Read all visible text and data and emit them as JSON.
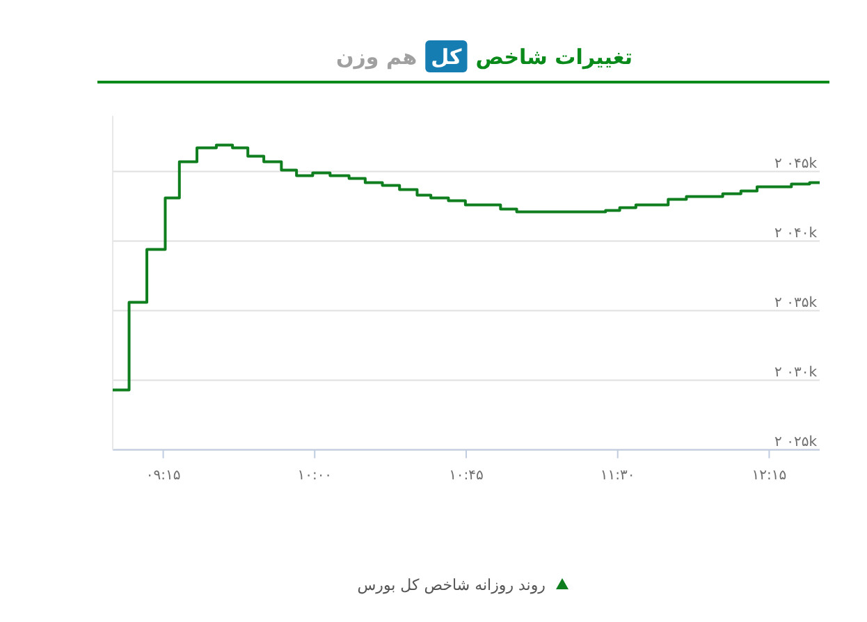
{
  "chart_data": {
    "type": "step",
    "title": "تغییرات شاخص",
    "subtitle": "هم وزن",
    "annotations": [
      "کل"
    ],
    "x": [
      9.0,
      9.081,
      9.169,
      9.26,
      9.33,
      9.417,
      9.513,
      9.593,
      9.669,
      9.748,
      9.835,
      9.91,
      9.99,
      10.076,
      10.17,
      10.25,
      10.335,
      10.42,
      10.507,
      10.575,
      10.662,
      10.746,
      10.92,
      11.0,
      11.44,
      11.51,
      11.59,
      11.75,
      11.84,
      12.02,
      12.11,
      12.19,
      12.36,
      12.45,
      12.5
    ],
    "series": [
      {
        "name": "روند روزانه شاخص کل بورس",
        "color": "#0e7e1e",
        "values": [
          2029.3,
          2035.6,
          2039.4,
          2043.1,
          2045.7,
          2046.7,
          2046.9,
          2046.7,
          2046.1,
          2045.7,
          2045.1,
          2044.7,
          2044.9,
          2044.7,
          2044.5,
          2044.2,
          2044.0,
          2043.7,
          2043.3,
          2043.1,
          2042.9,
          2042.6,
          2042.3,
          2042.1,
          2042.2,
          2042.4,
          2042.6,
          2043.0,
          2043.2,
          2043.4,
          2043.6,
          2043.9,
          2044.1,
          2044.2,
          2044.2
        ]
      }
    ],
    "xlim": [
      9.0,
      12.5
    ],
    "ylim": [
      2025,
      2049
    ],
    "xticks": [
      {
        "value": 9.25,
        "label": "۰۹:۱۵"
      },
      {
        "value": 10.0,
        "label": "۱۰:۰۰"
      },
      {
        "value": 10.75,
        "label": "۱۰:۴۵"
      },
      {
        "value": 11.5,
        "label": "۱۱:۳۰"
      },
      {
        "value": 12.25,
        "label": "۱۲:۱۵"
      }
    ],
    "yticks": [
      {
        "value": 2025,
        "label": "۲ ۰۲۵k"
      },
      {
        "value": 2030,
        "label": "۲ ۰۳۰k"
      },
      {
        "value": 2035,
        "label": "۲ ۰۳۵k"
      },
      {
        "value": 2040,
        "label": "۲ ۰۴۰k"
      },
      {
        "value": 2045,
        "label": "۲ ۰۴۵k"
      }
    ],
    "grid": "y",
    "legend": "bottom",
    "marker": "none",
    "line_style": "solid"
  }
}
